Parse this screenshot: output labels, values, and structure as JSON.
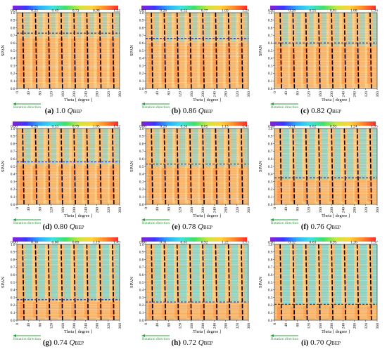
{
  "figure": {
    "chart_data": [
      {
        "type": "heatmap",
        "caption": {
          "letter": "(a)",
          "value": "1.0",
          "symbol": "Q",
          "subscript": "BEP"
        },
        "colorbar_ticks": [
          "0.01",
          "0.25",
          "0.49",
          "0.73",
          "0.98",
          "1.22"
        ],
        "dashed_line_span": 0.73,
        "xlabel": "Theta [ degree ]",
        "ylabel": "SPAN",
        "annotation": "Rotation direction",
        "x_ticks": [
          "0",
          "40",
          "80",
          "120",
          "160",
          "200",
          "240",
          "280",
          "320",
          "360"
        ],
        "y_ticks": [
          "0.0",
          "0.1",
          "0.2",
          "0.3",
          "0.4",
          "0.5",
          "0.6",
          "0.7",
          "0.8",
          "0.9",
          "1.0"
        ],
        "xlim": [
          0,
          360
        ],
        "ylim": [
          0,
          1
        ],
        "blade_positions": [
          20,
          65,
          110,
          155,
          200,
          245,
          290,
          335
        ]
      },
      {
        "type": "heatmap",
        "caption": {
          "letter": "(b)",
          "value": "0.86",
          "symbol": "Q",
          "subscript": "BEP"
        },
        "colorbar_ticks": [
          "0.01",
          "0.26",
          "0.52",
          "0.77",
          "1.03",
          "1.29"
        ],
        "dashed_line_span": 0.66,
        "xlabel": "Theta [ degree ]",
        "ylabel": "SPAN",
        "annotation": "Rotation direction",
        "x_ticks": [
          "0",
          "40",
          "80",
          "120",
          "160",
          "200",
          "240",
          "280",
          "320",
          "360"
        ],
        "y_ticks": [
          "0.0",
          "0.1",
          "0.2",
          "0.3",
          "0.4",
          "0.5",
          "0.6",
          "0.7",
          "0.8",
          "0.9",
          "1.0"
        ],
        "xlim": [
          0,
          360
        ],
        "ylim": [
          0,
          1
        ],
        "blade_positions": [
          20,
          65,
          110,
          155,
          200,
          245,
          290,
          335
        ]
      },
      {
        "type": "heatmap",
        "caption": {
          "letter": "(c)",
          "value": "0.82",
          "symbol": "Q",
          "subscript": "BEP"
        },
        "colorbar_ticks": [
          "0.02",
          "0.28",
          "0.55",
          "0.81",
          "1.08",
          "1.34"
        ],
        "dashed_line_span": 0.6,
        "xlabel": "Theta [ degree ]",
        "ylabel": "SPAN",
        "annotation": "Rotation direction",
        "x_ticks": [
          "0",
          "40",
          "80",
          "120",
          "160",
          "200",
          "240",
          "280",
          "320",
          "360"
        ],
        "y_ticks": [
          "0.0",
          "0.1",
          "0.2",
          "0.3",
          "0.4",
          "0.5",
          "0.6",
          "0.7",
          "0.8",
          "0.9",
          "1.0"
        ],
        "xlim": [
          0,
          360
        ],
        "ylim": [
          0,
          1
        ],
        "blade_positions": [
          20,
          65,
          110,
          155,
          200,
          245,
          290,
          335
        ]
      },
      {
        "type": "heatmap",
        "caption": {
          "letter": "(d)",
          "value": "0.80",
          "symbol": "Q",
          "subscript": "BEP"
        },
        "colorbar_ticks": [
          "0.00",
          "0.26",
          "0.53",
          "0.79",
          "1.05",
          "1.32"
        ],
        "dashed_line_span": 0.56,
        "xlabel": "Theta [ degree ]",
        "ylabel": "SPAN",
        "annotation": "Rotation direction",
        "x_ticks": [
          "0",
          "40",
          "80",
          "120",
          "160",
          "200",
          "240",
          "280",
          "320",
          "360"
        ],
        "y_ticks": [
          "0.0",
          "0.1",
          "0.2",
          "0.3",
          "0.4",
          "0.5",
          "0.6",
          "0.7",
          "0.8",
          "0.9",
          "1.0"
        ],
        "xlim": [
          0,
          360
        ],
        "ylim": [
          0,
          1
        ],
        "blade_positions": [
          20,
          65,
          110,
          155,
          200,
          245,
          290,
          335
        ]
      },
      {
        "type": "heatmap",
        "caption": {
          "letter": "(e)",
          "value": "0.78",
          "symbol": "Q",
          "subscript": "BEP"
        },
        "colorbar_ticks": [
          "0.00",
          "0.28",
          "0.56",
          "0.85",
          "1.13",
          "1.41"
        ],
        "dashed_line_span": 0.53,
        "xlabel": "Theta [ degree ]",
        "ylabel": "SPAN",
        "annotation": "Rotation direction",
        "x_ticks": [
          "0",
          "40",
          "80",
          "120",
          "160",
          "200",
          "240",
          "280",
          "320",
          "360"
        ],
        "y_ticks": [
          "0.0",
          "0.1",
          "0.2",
          "0.3",
          "0.4",
          "0.5",
          "0.6",
          "0.7",
          "0.8",
          "0.9",
          "1.0"
        ],
        "xlim": [
          0,
          360
        ],
        "ylim": [
          0,
          1
        ],
        "blade_positions": [
          20,
          65,
          110,
          155,
          200,
          245,
          290,
          335
        ]
      },
      {
        "type": "heatmap",
        "caption": {
          "letter": "(f)",
          "value": "0.76",
          "symbol": "Q",
          "subscript": "BEP"
        },
        "colorbar_ticks": [
          "0.00",
          "0.31",
          "0.62",
          "0.93",
          "1.24",
          "1.55"
        ],
        "dashed_line_span": 0.35,
        "xlabel": "Theta [ degree ]",
        "ylabel": "SPAN",
        "annotation": "Rotation direction",
        "x_ticks": [
          "0",
          "40",
          "80",
          "120",
          "160",
          "200",
          "240",
          "280",
          "320",
          "360"
        ],
        "y_ticks": [
          "0.0",
          "0.1",
          "0.2",
          "0.3",
          "0.4",
          "0.5",
          "0.6",
          "0.7",
          "0.8",
          "0.9",
          "1.0"
        ],
        "xlim": [
          0,
          360
        ],
        "ylim": [
          0,
          1
        ],
        "blade_positions": [
          20,
          65,
          110,
          155,
          200,
          245,
          290,
          335
        ]
      },
      {
        "type": "heatmap",
        "caption": {
          "letter": "(g)",
          "value": "0.74",
          "symbol": "Q",
          "subscript": "BEP"
        },
        "colorbar_ticks": [
          "0.00",
          "0.30",
          "0.60",
          "0.89",
          "1.19",
          "1.49"
        ],
        "dashed_line_span": 0.27,
        "xlabel": "Theta [ degree ]",
        "ylabel": "SPAN",
        "annotation": "Rotation direction",
        "x_ticks": [
          "0",
          "40",
          "80",
          "120",
          "160",
          "200",
          "240",
          "280",
          "320",
          "360"
        ],
        "y_ticks": [
          "0.0",
          "0.1",
          "0.2",
          "0.3",
          "0.4",
          "0.5",
          "0.6",
          "0.7",
          "0.8",
          "0.9",
          "1.0"
        ],
        "xlim": [
          0,
          360
        ],
        "ylim": [
          0,
          1
        ],
        "blade_positions": [
          20,
          65,
          110,
          155,
          200,
          245,
          290,
          335
        ]
      },
      {
        "type": "heatmap",
        "caption": {
          "letter": "(h)",
          "value": "0.72",
          "symbol": "Q",
          "subscript": "BEP"
        },
        "colorbar_ticks": [
          "0.00",
          "0.31",
          "0.61",
          "0.92",
          "1.22",
          "1.53"
        ],
        "dashed_line_span": 0.24,
        "xlabel": "Theta [ degree ]",
        "ylabel": "SPAN",
        "annotation": "Rotation direction",
        "x_ticks": [
          "0",
          "40",
          "80",
          "120",
          "160",
          "200",
          "240",
          "280",
          "320",
          "360"
        ],
        "y_ticks": [
          "0.0",
          "0.1",
          "0.2",
          "0.3",
          "0.4",
          "0.5",
          "0.6",
          "0.7",
          "0.8",
          "0.9",
          "1.0"
        ],
        "xlim": [
          0,
          360
        ],
        "ylim": [
          0,
          1
        ],
        "blade_positions": [
          20,
          65,
          110,
          155,
          200,
          245,
          290,
          335
        ]
      },
      {
        "type": "heatmap",
        "caption": {
          "letter": "(i)",
          "value": "0.70",
          "symbol": "Q",
          "subscript": "BEP"
        },
        "colorbar_ticks": [
          "0.01",
          "0.32",
          "0.63",
          "0.95",
          "1.26",
          "1.57"
        ],
        "dashed_line_span": 0.21,
        "xlabel": "Theta [ degree ]",
        "ylabel": "SPAN",
        "annotation": "Rotation direction",
        "x_ticks": [
          "0",
          "40",
          "80",
          "120",
          "160",
          "200",
          "240",
          "280",
          "320",
          "360"
        ],
        "y_ticks": [
          "0.0",
          "0.1",
          "0.2",
          "0.3",
          "0.4",
          "0.5",
          "0.6",
          "0.7",
          "0.8",
          "0.9",
          "1.0"
        ],
        "xlim": [
          0,
          360
        ],
        "ylim": [
          0,
          1
        ],
        "blade_positions": [
          20,
          65,
          110,
          155,
          200,
          245,
          290,
          335
        ]
      }
    ],
    "colors": {
      "colormap": [
        "#8a1fd6",
        "#3a36ff",
        "#2ba8ff",
        "#3fe0e0",
        "#3fe06a",
        "#c8e640",
        "#ffd23a",
        "#ff8a2a",
        "#ff2a2a"
      ],
      "dashed_line": "#1f2a9a",
      "blade": "#000000",
      "annotation": "#2e9e3e",
      "background_warm": "#f6b36a",
      "background_cool": "#7fd6cf"
    }
  }
}
